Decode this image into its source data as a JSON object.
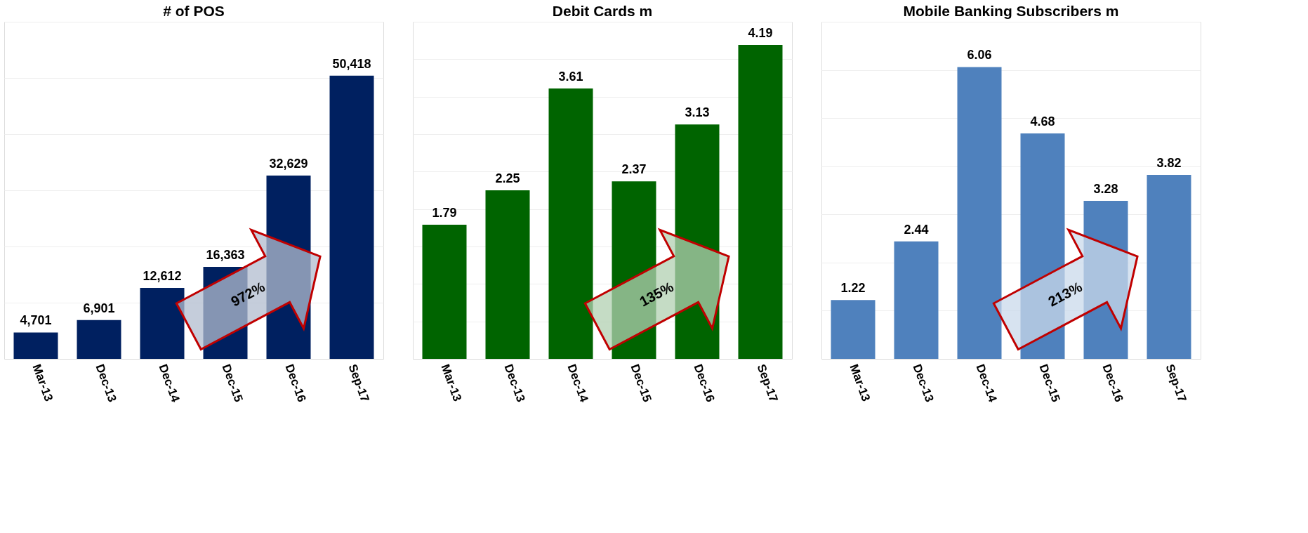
{
  "chart_data": [
    {
      "type": "bar",
      "title": "# of POS",
      "categories": [
        "Mar-13",
        "Dec-13",
        "Dec-14",
        "Dec-15",
        "Dec-16",
        "Sep-17"
      ],
      "series": [
        {
          "color": "#002060",
          "values": [
            4701,
            6901,
            12612,
            16363,
            32629,
            50418
          ],
          "value_labels": [
            "4,701",
            "6,901",
            "12,612",
            "16,363",
            "32,629",
            "50,418"
          ]
        }
      ],
      "ylim": [
        0,
        60000
      ],
      "yticks": [
        {
          "value": 0,
          "label": null
        },
        {
          "value": 10000,
          "label": null
        },
        {
          "value": 20000,
          "label": null
        },
        {
          "value": 30000,
          "label": null
        },
        {
          "value": 40000,
          "label": null
        },
        {
          "value": 50000,
          "label": null
        },
        {
          "value": 60000,
          "label": null
        }
      ],
      "tick_labels": "x",
      "grid": "y",
      "annotations": [
        "972%"
      ]
    },
    {
      "type": "bar",
      "title": "Debit Cards m",
      "categories": [
        "Mar-13",
        "Dec-13",
        "Dec-14",
        "Dec-15",
        "Dec-16",
        "Sep-17"
      ],
      "series": [
        {
          "color": "#006400",
          "values": [
            1.79,
            2.25,
            3.61,
            2.37,
            3.13,
            4.19
          ]
        }
      ],
      "data_labels": true,
      "ylim": [
        0,
        4.5
      ],
      "yticks": [
        {
          "value": 0,
          "label": null
        },
        {
          "value": 0.5,
          "label": null
        },
        {
          "value": 1,
          "label": null
        },
        {
          "value": 1.5,
          "label": null
        },
        {
          "value": 2,
          "label": null
        },
        {
          "value": 2.5,
          "label": null
        },
        {
          "value": 3,
          "label": null
        },
        {
          "value": 3.5,
          "label": null
        },
        {
          "value": 4,
          "label": null
        },
        {
          "value": 4.5,
          "label": null
        }
      ],
      "tick_labels": "x",
      "grid": "y",
      "annotations": [
        "135%"
      ]
    },
    {
      "type": "bar",
      "title": "Mobile Banking Subscribers m",
      "categories": [
        "Mar-13",
        "Dec-13",
        "Dec-14",
        "Dec-15",
        "Dec-16",
        "Sep-17"
      ],
      "series": [
        {
          "color": "#4f81bd",
          "values": [
            1.22,
            2.44,
            6.06,
            4.68,
            3.28,
            3.82
          ]
        }
      ],
      "data_labels": true,
      "ylim": [
        0,
        7
      ],
      "yticks": [
        {
          "value": 0,
          "label": null
        },
        {
          "value": 1,
          "label": null
        },
        {
          "value": 2,
          "label": null
        },
        {
          "value": 3,
          "label": null
        },
        {
          "value": 4,
          "label": null
        },
        {
          "value": 5,
          "label": null
        },
        {
          "value": 6,
          "label": null
        },
        {
          "value": 7,
          "label": null
        }
      ],
      "tick_labels": "x",
      "grid": "y",
      "annotations": [
        "213%"
      ]
    }
  ]
}
